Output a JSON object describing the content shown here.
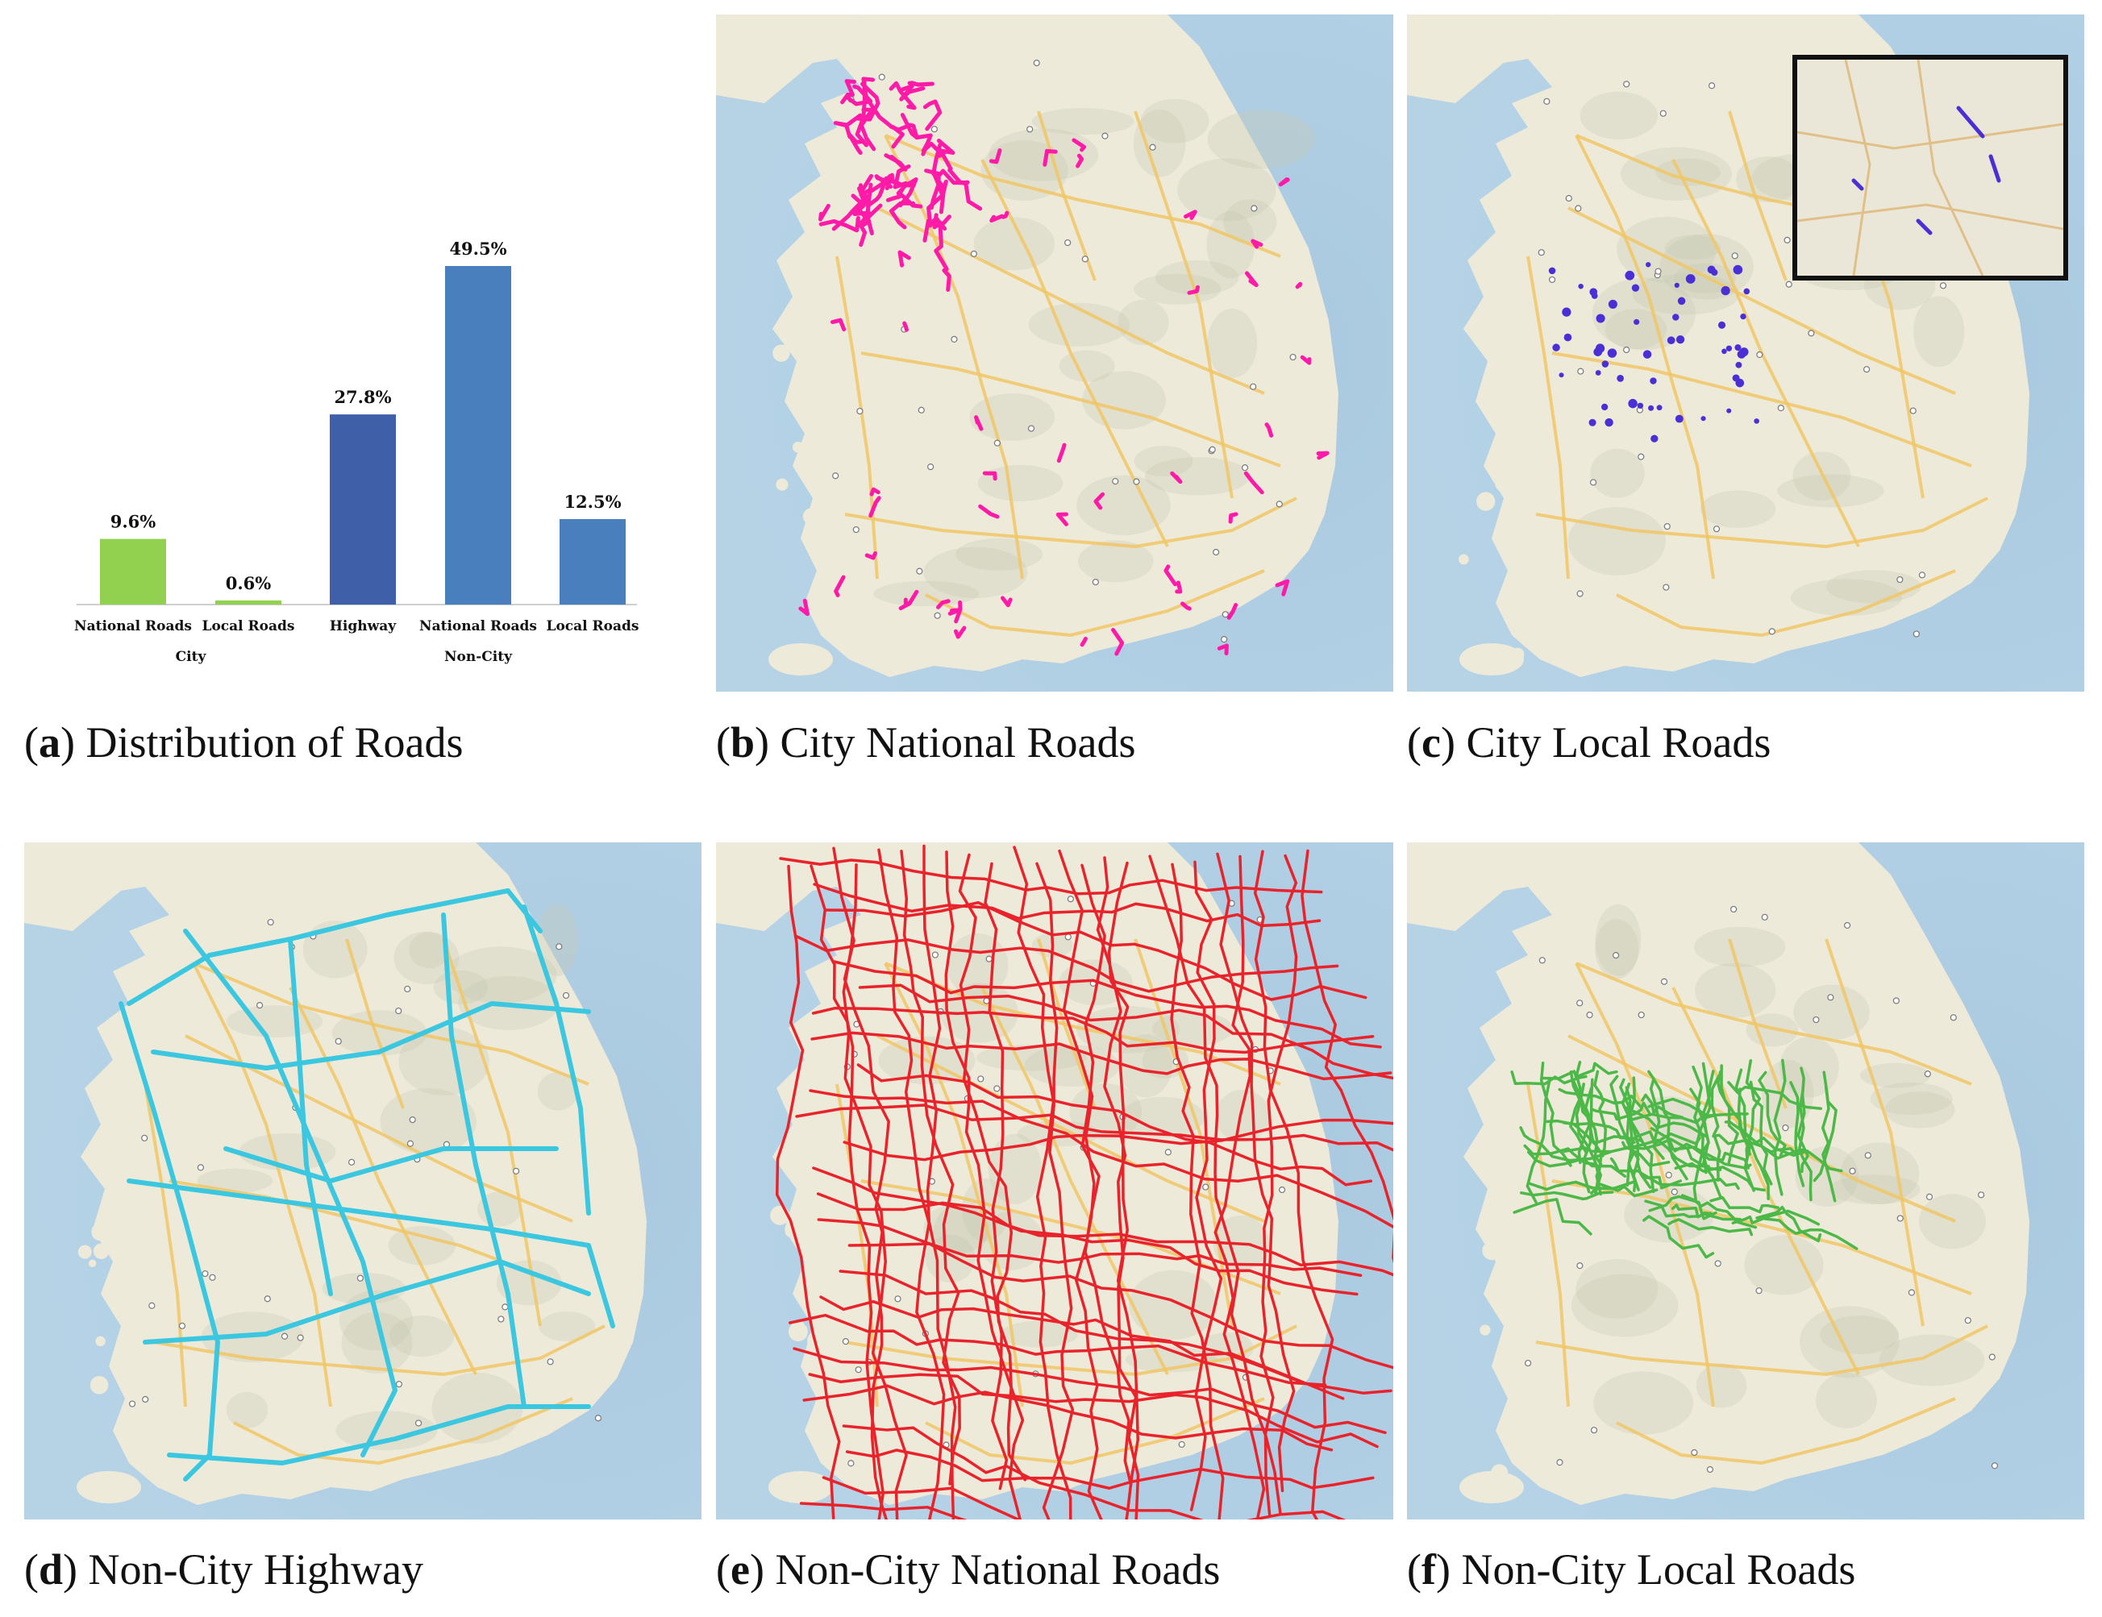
{
  "chart_data": {
    "type": "bar",
    "groups": [
      {
        "name": "City",
        "categories": [
          "National Roads",
          "Local Roads"
        ]
      },
      {
        "name": "Non-City",
        "categories": [
          "Highway",
          "National Roads",
          "Local Roads"
        ]
      }
    ],
    "categories": [
      "National Roads",
      "Local Roads",
      "Highway",
      "National Roads",
      "Local Roads"
    ],
    "values": [
      9.6,
      0.6,
      27.8,
      49.5,
      12.5
    ],
    "value_labels": [
      "9.6%",
      "0.6%",
      "27.8%",
      "49.5%",
      "12.5%"
    ],
    "bar_colors": [
      "#92d050",
      "#92d050",
      "#3f5fa9",
      "#4a7fbd",
      "#4a7fbd"
    ],
    "unit": "%",
    "ylim": [
      0,
      55
    ],
    "grid": false
  },
  "captions": {
    "a": {
      "letter": "a",
      "text": "Distribution of Roads"
    },
    "b": {
      "letter": "b",
      "text": "City National Roads"
    },
    "c": {
      "letter": "c",
      "text": "City Local Roads"
    },
    "d": {
      "letter": "d",
      "text": "Non-City Highway"
    },
    "e": {
      "letter": "e",
      "text": "Non-City National Roads"
    },
    "f": {
      "letter": "f",
      "text": "Non-City Local Roads"
    }
  },
  "maps": {
    "b": {
      "overlay_color": "#ff1aa8",
      "style": "patches"
    },
    "c": {
      "overlay_color": "#4b2fd6",
      "style": "dots",
      "has_inset": true
    },
    "d": {
      "overlay_color": "#3cc7e0",
      "style": "network"
    },
    "e": {
      "overlay_color": "#e8232b",
      "style": "dense"
    },
    "f": {
      "overlay_color": "#4cb848",
      "style": "regional"
    }
  },
  "colors": {
    "sea": "#aecde3",
    "land": "#eeeada",
    "roads": "#f0c766",
    "mountain": "#c9cbb5"
  }
}
